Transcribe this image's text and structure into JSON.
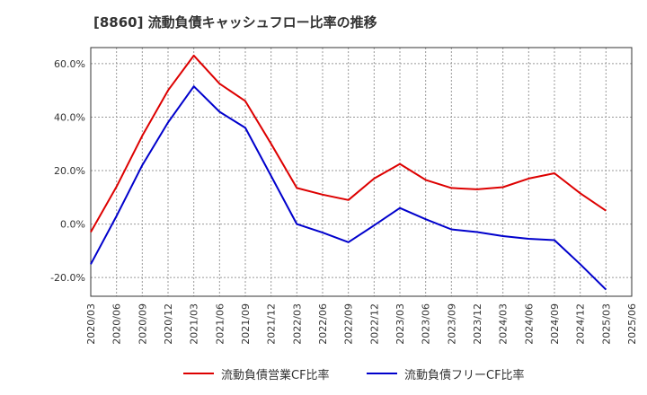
{
  "title": "[8860]  流動負債キャッシュフロー比率の推移",
  "chart_data": {
    "type": "line",
    "title": "[8860]  流動負債キャッシュフロー比率の推移",
    "xlabel": "",
    "ylabel": "",
    "ylim": [
      -27,
      66
    ],
    "yticks": [
      60,
      40,
      20,
      0,
      -20
    ],
    "ytick_labels": [
      "60.0%",
      "40.0%",
      "20.0%",
      "0.0%",
      "-20.0%"
    ],
    "grid": true,
    "legend_position": "bottom",
    "x": [
      "2020/03",
      "2020/06",
      "2020/09",
      "2020/12",
      "2021/03",
      "2021/06",
      "2021/09",
      "2021/12",
      "2022/03",
      "2022/06",
      "2022/09",
      "2022/12",
      "2023/03",
      "2023/06",
      "2023/09",
      "2023/12",
      "2024/03",
      "2024/06",
      "2024/09",
      "2024/12",
      "2025/03",
      "2025/06"
    ],
    "series": [
      {
        "name": "流動負債営業CF比率",
        "color": "#dd0000",
        "values": [
          -3.0,
          14.0,
          33.0,
          50.0,
          63.0,
          52.5,
          46.0,
          30.0,
          13.5,
          11.0,
          9.0,
          17.0,
          22.5,
          16.5,
          13.5,
          13.0,
          13.8,
          17.0,
          19.0,
          11.5,
          5.0,
          null
        ]
      },
      {
        "name": "流動負債フリーCF比率",
        "color": "#0000cc",
        "values": [
          -15.0,
          3.0,
          22.0,
          38.0,
          51.5,
          42.0,
          36.0,
          18.0,
          0.0,
          -3.2,
          -6.8,
          -0.5,
          6.0,
          1.8,
          -2.0,
          -3.0,
          -4.5,
          -5.5,
          -6.0,
          -15.0,
          -24.5,
          null
        ]
      }
    ]
  }
}
